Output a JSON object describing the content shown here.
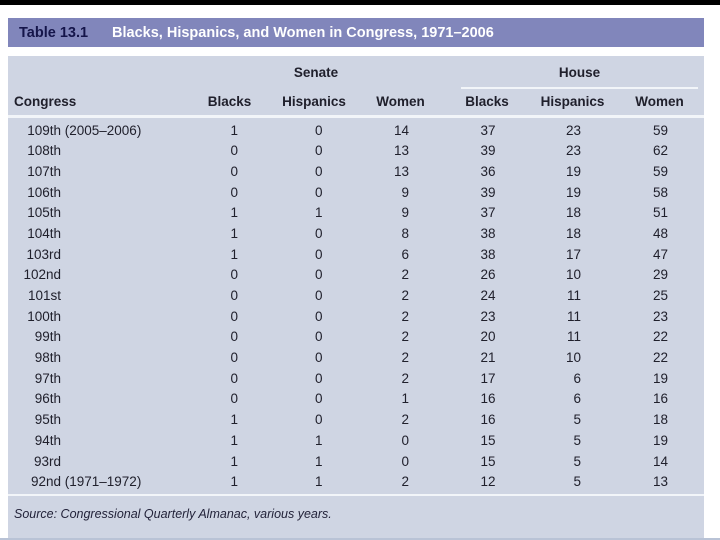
{
  "page": {
    "top_rule_color": "#000000",
    "accent_color": "#8186bb",
    "panel_color": "#cfd5e3"
  },
  "table": {
    "label": "Table 13.1",
    "title": "Blacks, Hispanics, and Women in Congress, 1971–2006",
    "group_headers": [
      "Senate",
      "House"
    ],
    "columns": [
      "Congress",
      "Blacks",
      "Hispanics",
      "Women",
      "Blacks",
      "Hispanics",
      "Women"
    ],
    "rows": [
      {
        "congress": "109th",
        "note": " (2005–2006)",
        "senate": [
          1,
          0,
          14
        ],
        "house": [
          37,
          23,
          59
        ]
      },
      {
        "congress": "108th",
        "note": "",
        "senate": [
          0,
          0,
          13
        ],
        "house": [
          39,
          23,
          62
        ]
      },
      {
        "congress": "107th",
        "note": "",
        "senate": [
          0,
          0,
          13
        ],
        "house": [
          36,
          19,
          59
        ]
      },
      {
        "congress": "106th",
        "note": "",
        "senate": [
          0,
          0,
          9
        ],
        "house": [
          39,
          19,
          58
        ]
      },
      {
        "congress": "105th",
        "note": "",
        "senate": [
          1,
          1,
          9
        ],
        "house": [
          37,
          18,
          51
        ]
      },
      {
        "congress": "104th",
        "note": "",
        "senate": [
          1,
          0,
          8
        ],
        "house": [
          38,
          18,
          48
        ]
      },
      {
        "congress": "103rd",
        "note": "",
        "senate": [
          1,
          0,
          6
        ],
        "house": [
          38,
          17,
          47
        ]
      },
      {
        "congress": "102nd",
        "note": "",
        "senate": [
          0,
          0,
          2
        ],
        "house": [
          26,
          10,
          29
        ]
      },
      {
        "congress": "101st",
        "note": "",
        "senate": [
          0,
          0,
          2
        ],
        "house": [
          24,
          11,
          25
        ]
      },
      {
        "congress": "100th",
        "note": "",
        "senate": [
          0,
          0,
          2
        ],
        "house": [
          23,
          11,
          23
        ]
      },
      {
        "congress": "99th",
        "note": "",
        "senate": [
          0,
          0,
          2
        ],
        "house": [
          20,
          11,
          22
        ]
      },
      {
        "congress": "98th",
        "note": "",
        "senate": [
          0,
          0,
          2
        ],
        "house": [
          21,
          10,
          22
        ]
      },
      {
        "congress": "97th",
        "note": "",
        "senate": [
          0,
          0,
          2
        ],
        "house": [
          17,
          6,
          19
        ]
      },
      {
        "congress": "96th",
        "note": "",
        "senate": [
          0,
          0,
          1
        ],
        "house": [
          16,
          6,
          16
        ]
      },
      {
        "congress": "95th",
        "note": "",
        "senate": [
          1,
          0,
          2
        ],
        "house": [
          16,
          5,
          18
        ]
      },
      {
        "congress": "94th",
        "note": "",
        "senate": [
          1,
          1,
          0
        ],
        "house": [
          15,
          5,
          19
        ]
      },
      {
        "congress": "93rd",
        "note": "",
        "senate": [
          1,
          1,
          0
        ],
        "house": [
          15,
          5,
          14
        ]
      },
      {
        "congress": "92nd",
        "note": " (1971–1972)",
        "senate": [
          1,
          1,
          2
        ],
        "house": [
          12,
          5,
          13
        ]
      }
    ],
    "source": "Source: Congressional Quarterly Almanac, various years."
  }
}
